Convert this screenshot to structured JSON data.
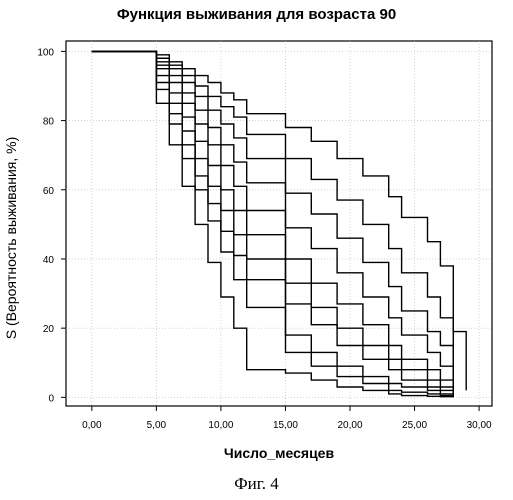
{
  "title": "Функция выживания для возраста 90",
  "caption": "Фиг. 4",
  "chart_data": {
    "type": "line",
    "step": true,
    "title": "Функция выживания для возраста 90",
    "xlabel": "Число_месяцев",
    "ylabel": "S (Вероятность выживания, %)",
    "xlim": [
      -2,
      31
    ],
    "ylim": [
      -2.5,
      103
    ],
    "x_ticks": [
      0,
      5,
      10,
      15,
      20,
      25,
      30
    ],
    "x_tick_labels": [
      "0,00",
      "5,00",
      "10,00",
      "15,00",
      "20,00",
      "25,00",
      "30,00"
    ],
    "y_ticks": [
      0,
      20,
      40,
      60,
      80,
      100
    ],
    "y_tick_labels": [
      "0",
      "20",
      "40",
      "60",
      "80",
      "100"
    ],
    "grid": true,
    "common_start": [
      [
        0,
        100
      ],
      [
        5,
        100
      ]
    ],
    "series": [
      {
        "values": [
          [
            5,
            99
          ],
          [
            6,
            97
          ],
          [
            7,
            95
          ],
          [
            8,
            93
          ],
          [
            9,
            91
          ],
          [
            10,
            88
          ],
          [
            11,
            86
          ],
          [
            12,
            82
          ],
          [
            15,
            78
          ],
          [
            17,
            74
          ],
          [
            19,
            69
          ],
          [
            21,
            64
          ],
          [
            23,
            58
          ],
          [
            24,
            52
          ],
          [
            26,
            45
          ],
          [
            27,
            38
          ],
          [
            28,
            30
          ],
          [
            28,
            19
          ],
          [
            29,
            5
          ],
          [
            29,
            2
          ]
        ]
      },
      {
        "values": [
          [
            5,
            98
          ],
          [
            6,
            96
          ],
          [
            7,
            93
          ],
          [
            8,
            90
          ],
          [
            9,
            87
          ],
          [
            10,
            84
          ],
          [
            11,
            81
          ],
          [
            12,
            76
          ],
          [
            15,
            69
          ],
          [
            17,
            63
          ],
          [
            19,
            57
          ],
          [
            21,
            50
          ],
          [
            23,
            43
          ],
          [
            24,
            36
          ],
          [
            26,
            29
          ],
          [
            27,
            23
          ],
          [
            28,
            18
          ],
          [
            28,
            6
          ]
        ]
      },
      {
        "values": [
          [
            5,
            98
          ],
          [
            6,
            95
          ],
          [
            7,
            91
          ],
          [
            8,
            87
          ],
          [
            9,
            83
          ],
          [
            10,
            79
          ],
          [
            11,
            75
          ],
          [
            12,
            69
          ],
          [
            15,
            59
          ],
          [
            17,
            53
          ],
          [
            19,
            46
          ],
          [
            21,
            39
          ],
          [
            23,
            32
          ],
          [
            24,
            25
          ],
          [
            26,
            19
          ],
          [
            27,
            15
          ],
          [
            28,
            10
          ],
          [
            28,
            3
          ]
        ]
      },
      {
        "values": [
          [
            5,
            97
          ],
          [
            6,
            93
          ],
          [
            7,
            88
          ],
          [
            8,
            83
          ],
          [
            9,
            78
          ],
          [
            10,
            73
          ],
          [
            11,
            68
          ],
          [
            12,
            62
          ],
          [
            15,
            49
          ],
          [
            17,
            43
          ],
          [
            19,
            36
          ],
          [
            21,
            29
          ],
          [
            23,
            23
          ],
          [
            24,
            18
          ],
          [
            26,
            13
          ],
          [
            27,
            9
          ],
          [
            28,
            6
          ],
          [
            28,
            2
          ]
        ]
      },
      {
        "values": [
          [
            5,
            96
          ],
          [
            6,
            91
          ],
          [
            7,
            85
          ],
          [
            8,
            79
          ],
          [
            9,
            73
          ],
          [
            10,
            67
          ],
          [
            11,
            61
          ],
          [
            12,
            54
          ],
          [
            15,
            40
          ],
          [
            17,
            33
          ],
          [
            19,
            27
          ],
          [
            21,
            21
          ],
          [
            23,
            15
          ],
          [
            24,
            11
          ],
          [
            26,
            8
          ],
          [
            27,
            5
          ],
          [
            28,
            3
          ],
          [
            28,
            1
          ]
        ]
      },
      {
        "values": [
          [
            5,
            95
          ],
          [
            6,
            88
          ],
          [
            7,
            81
          ],
          [
            8,
            74
          ],
          [
            9,
            67
          ],
          [
            10,
            60
          ],
          [
            11,
            54
          ],
          [
            12,
            47
          ],
          [
            15,
            33
          ],
          [
            17,
            26
          ],
          [
            19,
            20
          ],
          [
            21,
            15
          ],
          [
            23,
            11
          ],
          [
            24,
            8
          ],
          [
            26,
            5
          ],
          [
            27,
            3
          ],
          [
            28,
            2
          ],
          [
            28,
            1
          ]
        ]
      },
      {
        "values": [
          [
            5,
            93
          ],
          [
            6,
            85
          ],
          [
            7,
            77
          ],
          [
            8,
            69
          ],
          [
            9,
            61
          ],
          [
            10,
            54
          ],
          [
            11,
            47
          ],
          [
            12,
            40
          ],
          [
            15,
            27
          ],
          [
            17,
            21
          ],
          [
            19,
            15
          ],
          [
            21,
            11
          ],
          [
            23,
            8
          ],
          [
            24,
            5
          ],
          [
            26,
            3
          ],
          [
            27,
            2
          ],
          [
            28,
            1
          ],
          [
            28,
            0
          ]
        ]
      },
      {
        "values": [
          [
            5,
            91
          ],
          [
            6,
            82
          ],
          [
            7,
            73
          ],
          [
            8,
            64
          ],
          [
            9,
            56
          ],
          [
            10,
            48
          ],
          [
            11,
            41
          ],
          [
            12,
            34
          ],
          [
            15,
            18
          ],
          [
            17,
            13
          ],
          [
            19,
            9
          ],
          [
            21,
            6
          ],
          [
            23,
            4
          ],
          [
            24,
            3
          ],
          [
            26,
            2
          ],
          [
            27,
            1
          ],
          [
            28,
            0.5
          ],
          [
            28,
            0
          ]
        ]
      },
      {
        "values": [
          [
            5,
            89
          ],
          [
            6,
            79
          ],
          [
            7,
            69
          ],
          [
            8,
            60
          ],
          [
            9,
            51
          ],
          [
            10,
            42
          ],
          [
            11,
            34
          ],
          [
            12,
            26
          ],
          [
            15,
            13
          ],
          [
            17,
            9
          ],
          [
            19,
            6
          ],
          [
            21,
            4
          ],
          [
            23,
            2
          ],
          [
            24,
            1.5
          ],
          [
            26,
            1
          ],
          [
            27,
            0.5
          ],
          [
            28,
            0
          ],
          [
            28,
            0
          ]
        ]
      },
      {
        "values": [
          [
            5,
            85
          ],
          [
            6,
            73
          ],
          [
            7,
            61
          ],
          [
            8,
            50
          ],
          [
            9,
            39
          ],
          [
            10,
            29
          ],
          [
            11,
            20
          ],
          [
            12,
            8
          ],
          [
            15,
            7
          ],
          [
            17,
            5
          ],
          [
            19,
            3
          ],
          [
            21,
            2
          ],
          [
            23,
            1
          ],
          [
            24,
            0.5
          ],
          [
            26,
            0.3
          ],
          [
            27,
            0.2
          ],
          [
            28,
            0
          ],
          [
            28,
            0
          ]
        ]
      }
    ]
  }
}
